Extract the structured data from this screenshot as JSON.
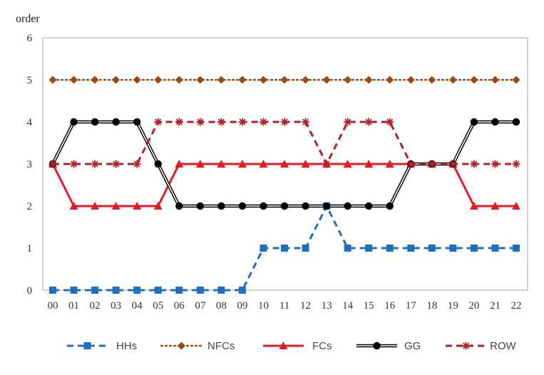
{
  "chart_data": {
    "type": "line",
    "title": "",
    "xlabel": "",
    "ylabel": "order",
    "ylim": [
      0,
      6
    ],
    "yticks": [
      "0",
      "1",
      "2",
      "3",
      "4",
      "5",
      "6"
    ],
    "categories": [
      "00",
      "01",
      "02",
      "03",
      "04",
      "05",
      "06",
      "07",
      "08",
      "09",
      "10",
      "11",
      "12",
      "13",
      "14",
      "15",
      "16",
      "17",
      "18",
      "19",
      "20",
      "21",
      "22"
    ],
    "grid": false,
    "legend_position": "bottom",
    "series": [
      {
        "name": "HHs",
        "color": "#1f6fbf",
        "marker": "square",
        "line_style": "dashed",
        "values": [
          0,
          0,
          0,
          0,
          0,
          0,
          0,
          0,
          0,
          0,
          1,
          1,
          1,
          2,
          1,
          1,
          1,
          1,
          1,
          1,
          1,
          1,
          1
        ]
      },
      {
        "name": "NFCs",
        "color": "#9a4a12",
        "marker": "diamond",
        "line_style": "dotted",
        "values": [
          5,
          5,
          5,
          5,
          5,
          5,
          5,
          5,
          5,
          5,
          5,
          5,
          5,
          5,
          5,
          5,
          5,
          5,
          5,
          5,
          5,
          5,
          5
        ]
      },
      {
        "name": "FCs",
        "color": "#e31b23",
        "marker": "triangle",
        "line_style": "solid",
        "values": [
          3,
          2,
          2,
          2,
          2,
          2,
          3,
          3,
          3,
          3,
          3,
          3,
          3,
          3,
          3,
          3,
          3,
          3,
          3,
          3,
          2,
          2,
          2
        ]
      },
      {
        "name": "GG",
        "color": "#000000",
        "marker": "circle",
        "line_style": "double",
        "values": [
          3,
          4,
          4,
          4,
          4,
          3,
          2,
          2,
          2,
          2,
          2,
          2,
          2,
          2,
          2,
          2,
          2,
          3,
          3,
          3,
          4,
          4,
          4
        ]
      },
      {
        "name": "ROW",
        "color": "#b3202a",
        "marker": "star",
        "line_style": "dashed",
        "values": [
          3,
          3,
          3,
          3,
          3,
          4,
          4,
          4,
          4,
          4,
          4,
          4,
          4,
          3,
          4,
          4,
          4,
          3,
          3,
          3,
          3,
          3,
          3
        ]
      }
    ]
  }
}
